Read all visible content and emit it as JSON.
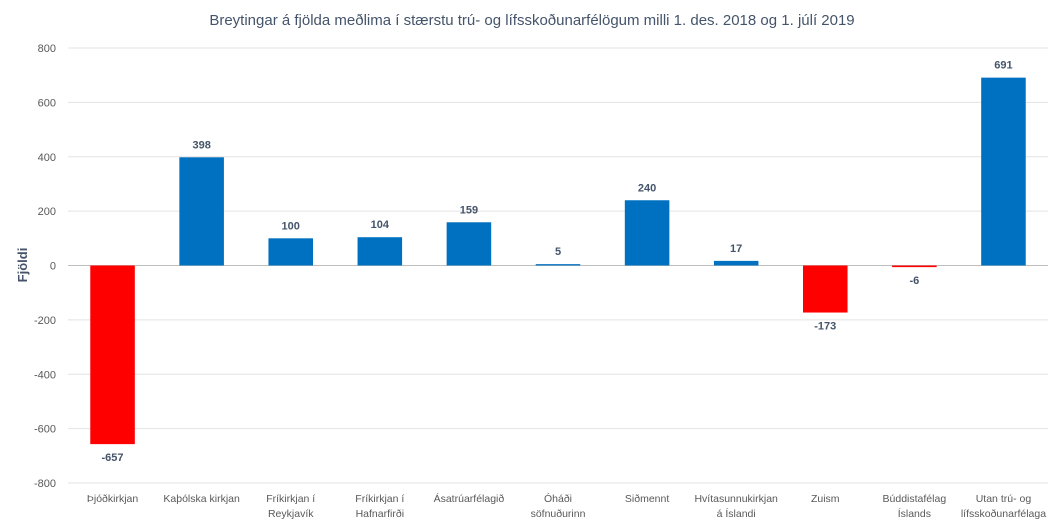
{
  "chart_data": {
    "type": "bar",
    "title": "Breytingar á fjölda meðlima í stærstu trú- og lífsskoðunarfélögum milli 1. des. 2018 og 1. júlí 2019",
    "ylabel": "Fjöldi",
    "xlabel": "",
    "ylim": [
      -800,
      800
    ],
    "yticks": [
      800,
      600,
      400,
      200,
      0,
      -200,
      -400,
      -600,
      -800
    ],
    "grid": true,
    "categories": [
      [
        "Þjóðkirkjan"
      ],
      [
        "Kaþólska kirkjan"
      ],
      [
        "Fríkirkjan í",
        "Reykjavík"
      ],
      [
        "Fríkirkjan í",
        "Hafnarfirði"
      ],
      [
        "Ásatrúarfélagið"
      ],
      [
        "Óháði",
        "söfnuðurinn"
      ],
      [
        "Siðmennt"
      ],
      [
        "Hvítasunnukirkjan",
        "á Íslandi"
      ],
      [
        "Zuism"
      ],
      [
        "Búddistafélag",
        "Íslands"
      ],
      [
        "Utan trú- og",
        "lífsskoðunarfélaga"
      ]
    ],
    "values": [
      -657,
      398,
      100,
      104,
      159,
      5,
      240,
      17,
      -173,
      -6,
      691
    ],
    "colors": {
      "positive": "#0070c0",
      "negative": "#ff0000"
    }
  }
}
